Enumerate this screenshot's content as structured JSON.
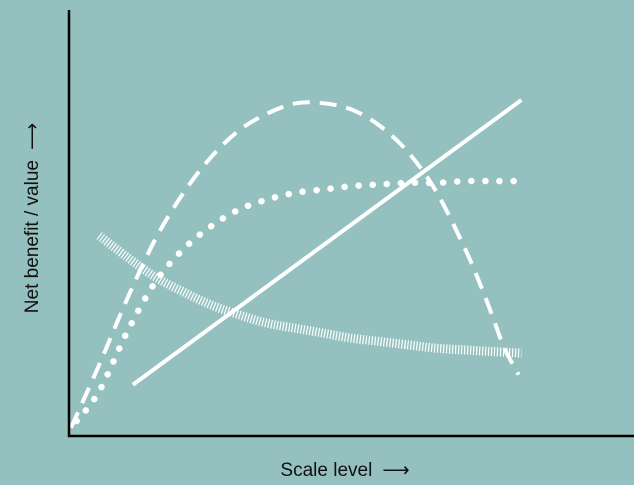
{
  "colors": {
    "background": "#94c1bf",
    "axis": "#000000",
    "curve": "#ffffff"
  },
  "chart_data": {
    "type": "line",
    "xlabel": "Scale level",
    "ylabel": "Net benefit / value",
    "arrow": "⟶",
    "grid": false,
    "legend": "none",
    "axis_ticks": "none",
    "xlim": [
      0,
      100
    ],
    "ylim": [
      0,
      100
    ],
    "series": [
      {
        "style": "dashed",
        "x": [
          0,
          5,
          10,
          15,
          20,
          25,
          30,
          35,
          40,
          45,
          50,
          55,
          60,
          65,
          70,
          73,
          75,
          77,
          79.5
        ],
        "y": [
          1,
          20,
          40,
          58,
          72,
          83,
          91,
          96,
          99,
          99,
          97,
          92,
          84,
          72,
          55,
          43,
          34,
          25,
          17
        ]
      },
      {
        "style": "dotted",
        "x": [
          1,
          5,
          10,
          15,
          20,
          25,
          30,
          35,
          40,
          45,
          50,
          55,
          60,
          65,
          70,
          75,
          80
        ],
        "y": [
          3,
          12,
          30,
          45,
          55,
          62,
          67,
          70,
          72,
          73,
          74,
          74.5,
          75,
          75,
          75.5,
          75.5,
          75.5
        ]
      },
      {
        "style": "solid",
        "x": [
          11,
          80
        ],
        "y": [
          14,
          100
        ]
      },
      {
        "style": "hatched",
        "x": [
          5,
          10,
          15,
          20,
          25,
          30,
          35,
          40,
          45,
          50,
          55,
          60,
          65,
          70,
          75,
          80
        ],
        "y": [
          59,
          52.5,
          46.5,
          42,
          38,
          35,
          32.5,
          31,
          29.5,
          28,
          27,
          26,
          25,
          24.5,
          24,
          23.5
        ]
      }
    ]
  }
}
